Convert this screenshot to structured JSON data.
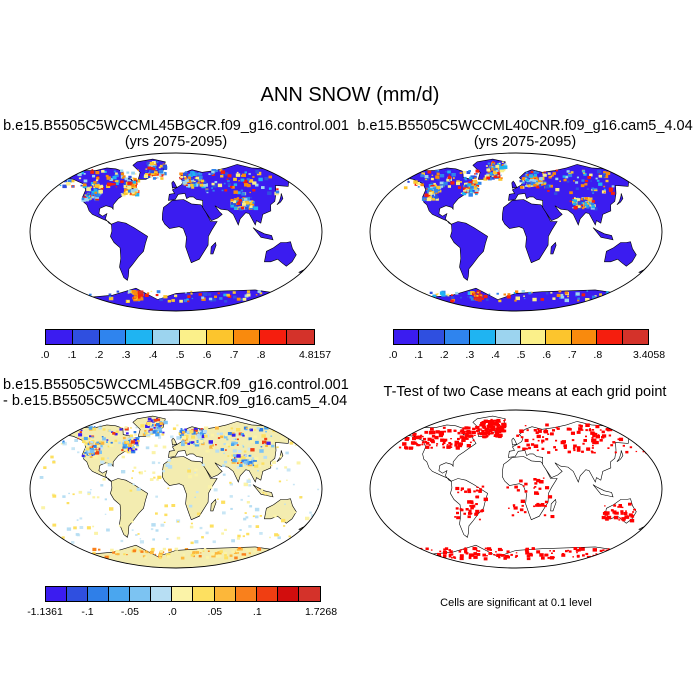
{
  "title": "ANN SNOW (mm/d)",
  "panels": {
    "top_left": {
      "line1": "b.e15.B5505C5WCCML45BGCR.f09_g16.control.001",
      "line2": "(yrs 2075-2095)"
    },
    "top_right": {
      "line1": "b.e15.B5505C5WCCML40CNR.f09_g16.cam5_4.04",
      "line2": "(yrs 2075-2095)"
    },
    "bottom_left": {
      "line1": "b.e15.B5505C5WCCML45BGCR.f09_g16.control.001",
      "line2": "- b.e15.B5505C5WCCML40CNR.f09_g16.cam5_4.04"
    },
    "bottom_right": {
      "line1": "T-Test of two Case means at each grid point",
      "note": "Cells are significant at 0.1 level"
    }
  },
  "colorbars": {
    "top_left": {
      "colors": [
        "#3b1cf0",
        "#2f4fe0",
        "#2f84ee",
        "#1fb4f2",
        "#9cd4ef",
        "#fbf08a",
        "#fcc52d",
        "#f98a0d",
        "#f51e0e",
        "#d4322a"
      ],
      "labels": [
        ".0",
        ".1",
        ".2",
        ".3",
        ".4",
        ".5",
        ".6",
        ".7",
        ".8",
        "4.8157"
      ]
    },
    "top_right": {
      "colors": [
        "#3b1cf0",
        "#2f4fe0",
        "#2f84ee",
        "#1fb4f2",
        "#9cd4ef",
        "#fbf08a",
        "#fcc52d",
        "#f98a0d",
        "#f51e0e",
        "#d4322a"
      ],
      "labels": [
        ".0",
        ".1",
        ".2",
        ".3",
        ".4",
        ".5",
        ".6",
        ".7",
        ".8",
        "3.4058"
      ]
    },
    "bottom_left": {
      "colors": [
        "#3b1cf0",
        "#2f4fe0",
        "#2f7fe8",
        "#4aa6ef",
        "#7cc3f2",
        "#b7def3",
        "#fbf3a8",
        "#fde060",
        "#fcb73a",
        "#f9801c",
        "#f03e12",
        "#d20d0d",
        "#d4322a"
      ],
      "labels": [
        "-1.1361",
        "-.1",
        "-.05",
        ".0",
        ".05",
        ".1",
        "1.7268"
      ]
    }
  },
  "colors": {
    "ocean": "#ffffff",
    "land_low": "#3b1cf0",
    "diff_land": "#f3ecb0",
    "significant": "#ff0000"
  }
}
